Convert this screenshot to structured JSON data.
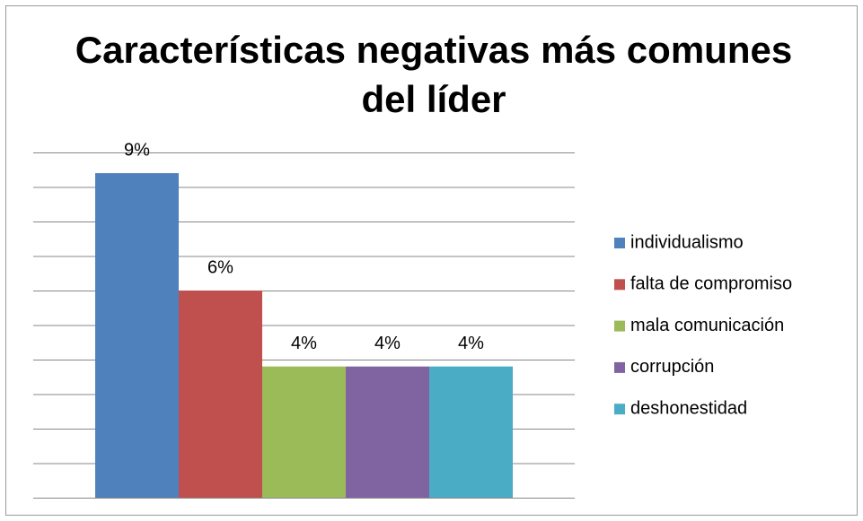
{
  "chart_data": {
    "type": "bar",
    "title": "Características negativas más comunes del líder",
    "series": [
      {
        "name": "individualismo",
        "color": "#4f81bd",
        "values": [
          9.4
        ],
        "value_labels": [
          "9%"
        ]
      },
      {
        "name": "falta de compromiso",
        "color": "#c0504d",
        "values": [
          6
        ],
        "value_labels": [
          "6%"
        ]
      },
      {
        "name": "mala comunicación",
        "color": "#9bbb59",
        "values": [
          3.8
        ],
        "value_labels": [
          "4%"
        ]
      },
      {
        "name": "corrupción",
        "color": "#8064a2",
        "values": [
          3.8
        ],
        "value_labels": [
          "4%"
        ]
      },
      {
        "name": "deshonestidad",
        "color": "#4bacc6",
        "values": [
          3.8
        ],
        "value_labels": [
          "4%"
        ]
      }
    ],
    "ylim": [
      0,
      10
    ],
    "yticks": [
      0,
      1,
      2,
      3,
      4,
      5,
      6,
      7,
      8,
      9,
      10
    ],
    "grid": true,
    "legend": "right"
  }
}
